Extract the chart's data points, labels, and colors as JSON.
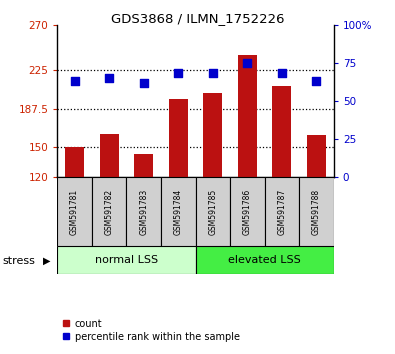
{
  "title": "GDS3868 / ILMN_1752226",
  "samples": [
    "GSM591781",
    "GSM591782",
    "GSM591783",
    "GSM591784",
    "GSM591785",
    "GSM591786",
    "GSM591787",
    "GSM591788"
  ],
  "counts": [
    150,
    162,
    143,
    197,
    203,
    240,
    210,
    161
  ],
  "percentile_ranks": [
    63,
    65,
    62,
    68,
    68,
    75,
    68,
    63
  ],
  "ylim_left": [
    120,
    270
  ],
  "ylim_right": [
    0,
    100
  ],
  "yticks_left": [
    120,
    150,
    187.5,
    225,
    270
  ],
  "ytick_labels_left": [
    "120",
    "150",
    "187.5",
    "225",
    "270"
  ],
  "yticks_right": [
    0,
    25,
    50,
    75,
    100
  ],
  "ytick_labels_right": [
    "0",
    "25",
    "50",
    "75",
    "100%"
  ],
  "bar_color": "#bb1111",
  "dot_color": "#0000cc",
  "group1_label": "normal LSS",
  "group2_label": "elevated LSS",
  "group1_color": "#ccffcc",
  "group2_color": "#44ee44",
  "stress_label": "stress",
  "legend_count_label": "count",
  "legend_pct_label": "percentile rank within the sample",
  "grid_color": "black",
  "left_axis_color": "#cc2200",
  "right_axis_color": "#0000cc",
  "bar_width": 0.55,
  "dot_size": 28,
  "group1_n": 4,
  "group2_n": 4
}
